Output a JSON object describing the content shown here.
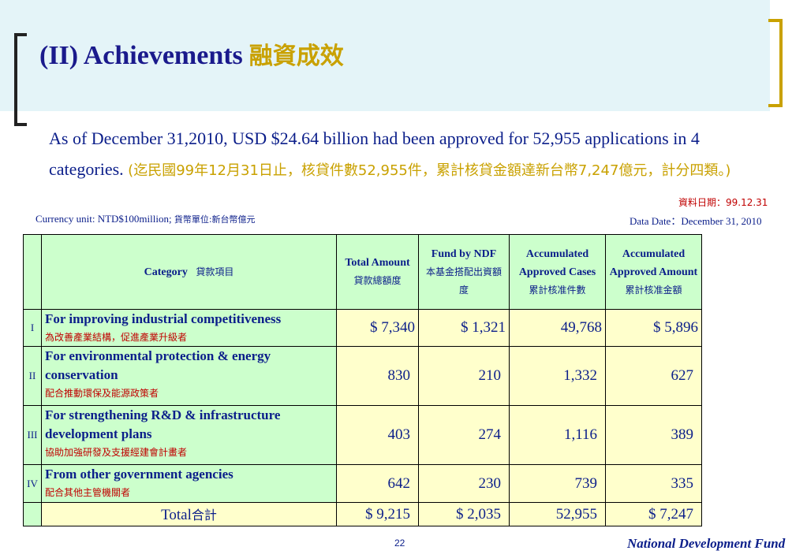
{
  "title": {
    "en": "(II) Achievements",
    "zh": "融資成效"
  },
  "summary": {
    "en": "As of December 31,2010, USD $24.64 billion had been approved for 52,955 applications in 4 categories.",
    "zh": "(迄民國99年12月31日止，核貸件數52,955件，累計核貸金額達新台幣7,247億元，計分四類。)"
  },
  "data_date_zh": "資料日期：99.12.31",
  "currency": {
    "en": "Currency unit: NTD$100million;",
    "zh": "貨幣單位:新台幣億元"
  },
  "data_date": "Data Date：December 31, 2010",
  "table": {
    "headers": {
      "category": {
        "en": "Category",
        "zh": "貸款項目"
      },
      "total_amount": {
        "en": "Total Amount",
        "zh": "貸款總額度"
      },
      "fund_by_ndf": {
        "en": "Fund by NDF",
        "zh": "本基金搭配出資額度"
      },
      "accumulated_cases": {
        "en": "Accumulated Approved Cases",
        "zh": "累計核准件數"
      },
      "accumulated_amount": {
        "en": "Accumulated Approved Amount",
        "zh": "累計核准金額"
      }
    },
    "rows": [
      {
        "index": "I",
        "en": "For improving industrial competitiveness",
        "zh": "為改善產業結構，促進產業升級者",
        "total": "$   7,340",
        "fund": "$     1,321",
        "cases": "49,768",
        "amount": "$       5,896"
      },
      {
        "index": "II",
        "en": "For environmental protection & energy conservation",
        "zh": "配合推動環保及能源政策者",
        "total": "830",
        "fund": "210",
        "cases": "1,332",
        "amount": "627"
      },
      {
        "index": "III",
        "en": "For strengthening R&D & infrastructure development plans",
        "zh": "協助加強研發及支援經建會計畫者",
        "total": "403",
        "fund": "274",
        "cases": "1,116",
        "amount": "389"
      },
      {
        "index": "IV",
        "en": "From other government agencies",
        "zh": "配合其他主管機關者",
        "total": "642",
        "fund": "230",
        "cases": "739",
        "amount": "335"
      }
    ],
    "total_row": {
      "en": "Total",
      "zh": "合計",
      "total": "$  9,215",
      "fund": "$    2,035",
      "cases": "52,955",
      "amount": "$      7,247"
    }
  },
  "page_number": "22",
  "footer": "National Development Fund",
  "colors": {
    "title": "#1a1a8c",
    "accent_gold": "#c9a100",
    "header_fill": "#ccffcc",
    "value_fill": "#ffffcc",
    "zh_red": "#c00000"
  }
}
